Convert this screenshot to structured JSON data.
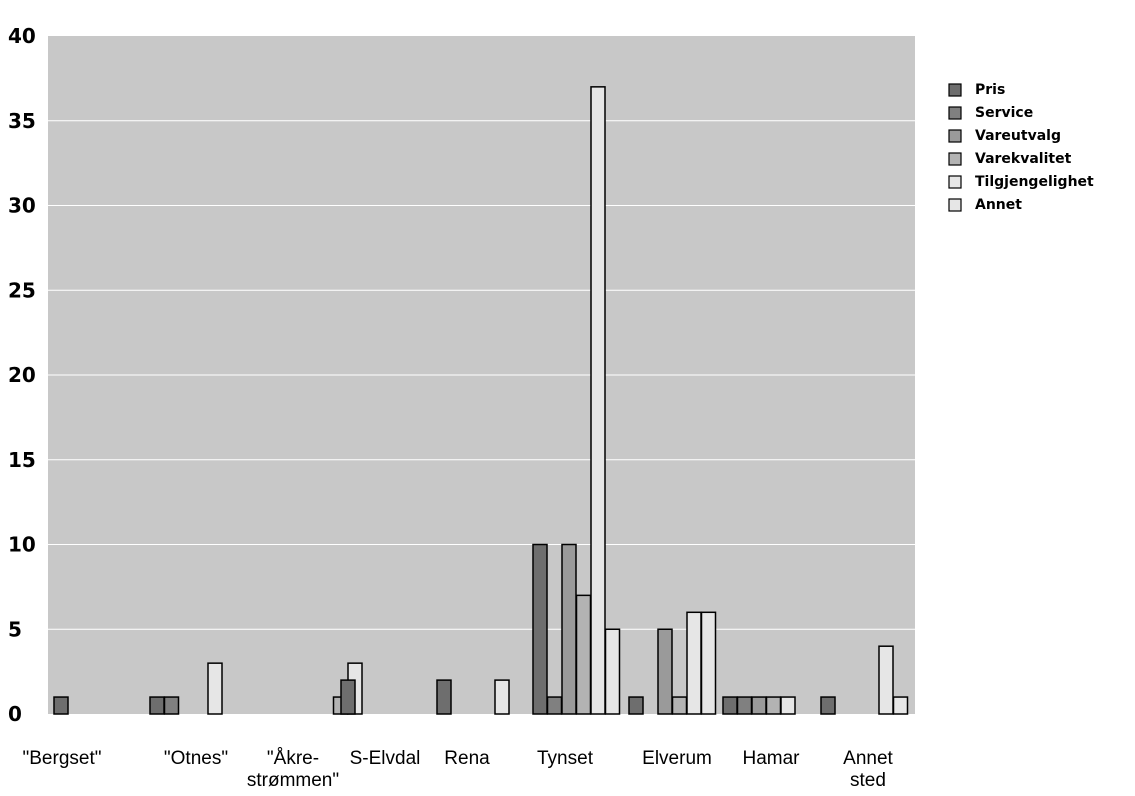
{
  "chart_data": {
    "type": "bar",
    "title": "",
    "xlabel": "",
    "ylabel": "",
    "ylim": [
      0,
      40
    ],
    "yticks": [
      0,
      5,
      10,
      15,
      20,
      25,
      30,
      35,
      40
    ],
    "grid": "horizontal",
    "legend_position": "right",
    "categories": [
      [
        "\"Bergset\""
      ],
      [
        "\"Otnes\""
      ],
      [
        "\"Åkre-",
        "strømmen\""
      ],
      [
        "S-Elvdal"
      ],
      [
        "Rena"
      ],
      [
        "Tynset"
      ],
      [
        "Elverum"
      ],
      [
        "Hamar"
      ],
      [
        "Annet",
        "sted"
      ]
    ],
    "series": [
      {
        "name": "Pris",
        "color": "#6e6e6e",
        "values": [
          1,
          1,
          0,
          2,
          2,
          10,
          1,
          1,
          1
        ]
      },
      {
        "name": "Service",
        "color": "#808080",
        "values": [
          0,
          1,
          0,
          0,
          0,
          1,
          0,
          1,
          0
        ]
      },
      {
        "name": "Vareutvalg",
        "color": "#9a9a9a",
        "values": [
          0,
          0,
          0,
          0,
          0,
          10,
          5,
          1,
          0
        ]
      },
      {
        "name": "Varekvalitet",
        "color": "#b3b3b3",
        "values": [
          0,
          0,
          1,
          0,
          0,
          7,
          1,
          1,
          0
        ]
      },
      {
        "name": "Tilgjengelighet",
        "color": "#e6e6e6",
        "values": [
          0,
          3,
          3,
          0,
          2,
          37,
          6,
          1,
          4
        ]
      },
      {
        "name": "Annet",
        "color": "#e6e6e6",
        "values": [
          0,
          0,
          0,
          0,
          0,
          5,
          6,
          0,
          1
        ]
      }
    ],
    "colors": {
      "plot_background": "#c8c8c8",
      "gridline": "#ffffff",
      "bar_outline": "#000000"
    }
  }
}
